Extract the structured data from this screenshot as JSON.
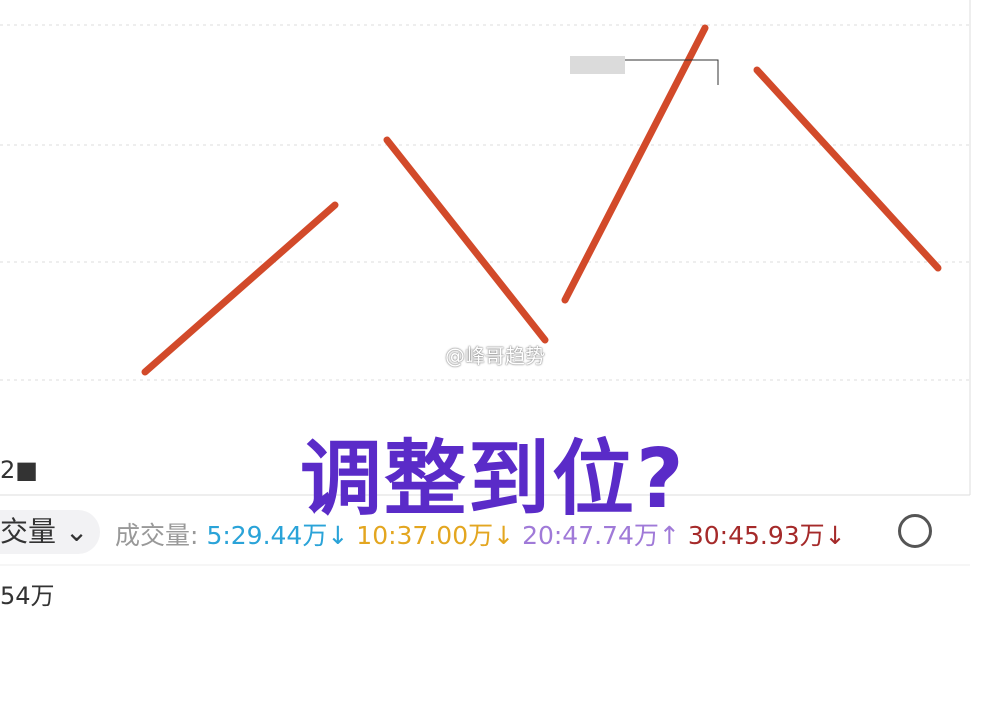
{
  "annotation": "调整到位?",
  "watermark": "@峰哥趋势",
  "left_label": "2■",
  "indicator_selector": "交量 ⌄",
  "volume_legend": {
    "title": "成交量:",
    "ma5": "5:29.44万↓",
    "ma10": "10:37.00万↓",
    "ma20": "20:47.74万↑",
    "ma30": "30:45.93万↓"
  },
  "volume_max_label": "54万"
}
